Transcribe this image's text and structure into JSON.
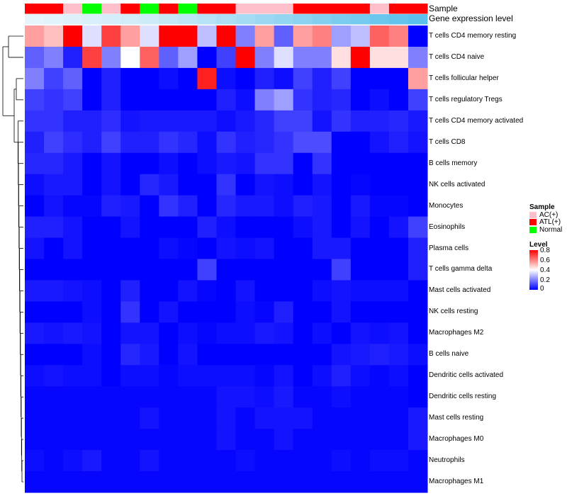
{
  "chart_data": {
    "type": "heatmap",
    "annotation_labels": [
      "Sample",
      "Gene expression level"
    ],
    "sample_groups": [
      "ATL(+)",
      "ATL(+)",
      "AC(+)",
      "Normal",
      "AC(+)",
      "ATL(+)",
      "Normal",
      "ATL(+)",
      "Normal",
      "ATL(+)",
      "ATL(+)",
      "AC(+)",
      "AC(+)",
      "AC(+)",
      "ATL(+)",
      "ATL(+)",
      "ATL(+)",
      "ATL(+)",
      "AC(+)",
      "ATL(+)",
      "ATL(+)"
    ],
    "gene_expression_level": [
      0.0,
      0.02,
      0.05,
      0.08,
      0.1,
      0.12,
      0.15,
      0.2,
      0.25,
      0.3,
      0.35,
      0.4,
      0.45,
      0.5,
      0.55,
      0.6,
      0.65,
      0.7,
      0.75,
      0.8,
      0.85
    ],
    "rows": [
      "T cells CD4 memory resting",
      "T cells CD4 naive",
      "T cells follicular helper",
      "T cells regulatory  Tregs",
      "T cells CD4 memory activated",
      "T cells CD8",
      "B cells memory",
      "NK cells activated",
      "Monocytes",
      "Eosinophils",
      "Plasma cells",
      "T cells gamma delta",
      "Mast cells activated",
      "NK cells resting",
      "Macrophages M2",
      "B cells naive",
      "Dendritic cells activated",
      "Dendritic cells resting",
      "Mast cells resting",
      "Macrophages M0",
      "Neutrophils",
      "Macrophages M1"
    ],
    "values": [
      [
        0.55,
        0.5,
        0.8,
        0.35,
        0.7,
        0.55,
        0.35,
        0.8,
        0.8,
        0.3,
        0.8,
        0.2,
        0.55,
        0.15,
        0.55,
        0.6,
        0.25,
        0.3,
        0.65,
        0.6,
        0.0
      ],
      [
        0.15,
        0.2,
        0.05,
        0.7,
        0.2,
        0.4,
        0.65,
        0.15,
        0.25,
        0.0,
        0.1,
        0.8,
        0.2,
        0.35,
        0.2,
        0.2,
        0.45,
        0.8,
        0.45,
        0.45,
        0.2
      ],
      [
        0.2,
        0.1,
        0.15,
        0.0,
        0.05,
        0.0,
        0.0,
        0.02,
        0.0,
        0.75,
        0.02,
        0.0,
        0.05,
        0.02,
        0.1,
        0.05,
        0.1,
        0.0,
        0.0,
        0.0,
        0.55
      ],
      [
        0.1,
        0.08,
        0.1,
        0.0,
        0.05,
        0.0,
        0.0,
        0.0,
        0.0,
        0.0,
        0.05,
        0.02,
        0.2,
        0.25,
        0.08,
        0.05,
        0.06,
        0.0,
        0.02,
        0.0,
        0.1
      ],
      [
        0.08,
        0.08,
        0.05,
        0.05,
        0.07,
        0.03,
        0.04,
        0.04,
        0.04,
        0.04,
        0.02,
        0.04,
        0.06,
        0.1,
        0.1,
        0.03,
        0.08,
        0.05,
        0.05,
        0.06,
        0.04
      ],
      [
        0.05,
        0.1,
        0.07,
        0.05,
        0.1,
        0.05,
        0.05,
        0.08,
        0.06,
        0.02,
        0.08,
        0.05,
        0.06,
        0.08,
        0.12,
        0.12,
        0.0,
        0.0,
        0.03,
        0.05,
        0.03
      ],
      [
        0.06,
        0.06,
        0.04,
        0.0,
        0.03,
        0.0,
        0.0,
        0.02,
        0.0,
        0.02,
        0.04,
        0.03,
        0.08,
        0.08,
        0.0,
        0.08,
        0.0,
        0.0,
        0.0,
        0.0,
        0.0
      ],
      [
        0.02,
        0.04,
        0.04,
        0.0,
        0.03,
        0.0,
        0.06,
        0.04,
        0.0,
        0.0,
        0.08,
        0.0,
        0.03,
        0.02,
        0.0,
        0.03,
        0.0,
        0.01,
        0.0,
        0.0,
        0.0
      ],
      [
        0.0,
        0.03,
        0.01,
        0.01,
        0.05,
        0.04,
        0.0,
        0.08,
        0.05,
        0.0,
        0.06,
        0.04,
        0.04,
        0.02,
        0.05,
        0.04,
        0.0,
        0.04,
        0.01,
        0.01,
        0.0
      ],
      [
        0.05,
        0.05,
        0.03,
        0.0,
        0.0,
        0.03,
        0.0,
        0.0,
        0.0,
        0.05,
        0.02,
        0.0,
        0.0,
        0.0,
        0.02,
        0.04,
        0.0,
        0.03,
        0.0,
        0.03,
        0.1
      ],
      [
        0.03,
        0.0,
        0.03,
        0.0,
        0.0,
        0.0,
        0.0,
        0.02,
        0.01,
        0.0,
        0.03,
        0.02,
        0.03,
        0.0,
        0.0,
        0.04,
        0.04,
        0.0,
        0.0,
        0.0,
        0.05
      ],
      [
        0.0,
        0.0,
        0.0,
        0.0,
        0.0,
        0.0,
        0.0,
        0.0,
        0.0,
        0.1,
        0.0,
        0.0,
        0.0,
        0.0,
        0.0,
        0.0,
        0.1,
        0.0,
        0.0,
        0.0,
        0.05
      ],
      [
        0.04,
        0.04,
        0.03,
        0.02,
        0.0,
        0.05,
        0.0,
        0.0,
        0.03,
        0.01,
        0.0,
        0.03,
        0.0,
        0.0,
        0.0,
        0.02,
        0.03,
        0.02,
        0.02,
        0.02,
        0.0
      ],
      [
        0.0,
        0.0,
        0.0,
        0.02,
        0.0,
        0.08,
        0.0,
        0.03,
        0.0,
        0.0,
        0.0,
        0.02,
        0.01,
        0.05,
        0.0,
        0.0,
        0.03,
        0.0,
        0.0,
        0.0,
        0.0
      ],
      [
        0.04,
        0.03,
        0.04,
        0.03,
        0.0,
        0.03,
        0.03,
        0.0,
        0.02,
        0.01,
        0.02,
        0.02,
        0.04,
        0.03,
        0.0,
        0.02,
        0.0,
        0.03,
        0.02,
        0.03,
        0.0
      ],
      [
        0.0,
        0.0,
        0.0,
        0.02,
        0.0,
        0.06,
        0.04,
        0.0,
        0.03,
        0.0,
        0.0,
        0.0,
        0.0,
        0.0,
        0.0,
        0.0,
        0.03,
        0.04,
        0.05,
        0.04,
        0.02
      ],
      [
        0.02,
        0.03,
        0.02,
        0.02,
        0.0,
        0.02,
        0.02,
        0.01,
        0.02,
        0.02,
        0.02,
        0.02,
        0.01,
        0.03,
        0.0,
        0.02,
        0.05,
        0.02,
        0.01,
        0.02,
        0.0
      ],
      [
        0.01,
        0.01,
        0.01,
        0.01,
        0.01,
        0.01,
        0.01,
        0.01,
        0.01,
        0.01,
        0.03,
        0.03,
        0.02,
        0.04,
        0.01,
        0.01,
        0.02,
        0.01,
        0.01,
        0.01,
        0.0
      ],
      [
        0.01,
        0.01,
        0.01,
        0.01,
        0.01,
        0.01,
        0.03,
        0.01,
        0.01,
        0.01,
        0.03,
        0.01,
        0.03,
        0.03,
        0.03,
        0.01,
        0.01,
        0.01,
        0.01,
        0.01,
        0.04
      ],
      [
        0.01,
        0.01,
        0.01,
        0.01,
        0.01,
        0.01,
        0.01,
        0.01,
        0.01,
        0.01,
        0.03,
        0.01,
        0.01,
        0.03,
        0.01,
        0.01,
        0.01,
        0.01,
        0.01,
        0.01,
        0.04
      ],
      [
        0.02,
        0.01,
        0.02,
        0.04,
        0.01,
        0.01,
        0.03,
        0.01,
        0.01,
        0.01,
        0.01,
        0.02,
        0.01,
        0.01,
        0.01,
        0.01,
        0.02,
        0.01,
        0.02,
        0.02,
        0.01
      ],
      [
        0.01,
        0.01,
        0.01,
        0.01,
        0.01,
        0.01,
        0.01,
        0.01,
        0.01,
        0.01,
        0.01,
        0.01,
        0.01,
        0.01,
        0.01,
        0.01,
        0.01,
        0.01,
        0.01,
        0.01,
        0.01
      ]
    ],
    "sample_legend": {
      "title": "Sample",
      "items": [
        {
          "label": "AC(+)",
          "color": "#ffc0cb"
        },
        {
          "label": "ATL(+)",
          "color": "#ff0000"
        },
        {
          "label": "Normal",
          "color": "#00ff00"
        }
      ]
    },
    "level_legend": {
      "title": "Level",
      "ticks": [
        "0.8",
        "0.6",
        "0.4",
        "0.2",
        "0"
      ],
      "range": [
        0,
        0.8
      ],
      "low_color": "#0000ff",
      "mid_color": "#ffffff",
      "high_color": "#ff0000"
    },
    "expression_colors": {
      "low": "#e6f4fb",
      "high": "#5bc0eb"
    }
  }
}
